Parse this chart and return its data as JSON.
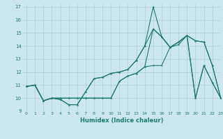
{
  "xlabel": "Humidex (Indice chaleur)",
  "background_color": "#cce8ee",
  "line_color": "#1a7a6e",
  "grid_color": "#aacfd6",
  "xlim": [
    -0.5,
    23
  ],
  "ylim": [
    9,
    17.2
  ],
  "xticks": [
    0,
    1,
    2,
    3,
    4,
    5,
    6,
    7,
    8,
    9,
    10,
    11,
    12,
    13,
    14,
    15,
    16,
    17,
    18,
    19,
    20,
    21,
    22,
    23
  ],
  "yticks": [
    9,
    10,
    11,
    12,
    13,
    14,
    15,
    16,
    17
  ],
  "series": [
    [
      10.9,
      11.0,
      9.8,
      10.0,
      9.9,
      9.5,
      9.5,
      10.5,
      11.5,
      11.6,
      11.9,
      12.0,
      12.2,
      12.9,
      14.0,
      17.0,
      14.7,
      13.9,
      14.3,
      14.8,
      10.0,
      12.5,
      11.2,
      10.0
    ],
    [
      10.9,
      11.0,
      9.8,
      10.0,
      10.0,
      10.0,
      10.0,
      10.0,
      10.0,
      10.0,
      10.0,
      11.3,
      11.7,
      11.9,
      12.4,
      12.5,
      12.5,
      13.9,
      14.1,
      14.8,
      14.4,
      14.3,
      12.5,
      10.0
    ],
    [
      10.9,
      11.0,
      9.8,
      10.0,
      10.0,
      10.0,
      10.0,
      10.0,
      10.0,
      10.0,
      10.0,
      11.3,
      11.7,
      11.9,
      12.4,
      15.3,
      14.7,
      13.9,
      14.3,
      14.8,
      14.4,
      14.3,
      12.5,
      10.0
    ],
    [
      10.9,
      11.0,
      9.8,
      10.0,
      9.9,
      9.5,
      9.5,
      10.5,
      11.5,
      11.6,
      11.9,
      12.0,
      12.2,
      12.9,
      14.0,
      15.3,
      14.7,
      13.9,
      14.3,
      14.8,
      10.0,
      12.5,
      11.2,
      10.0
    ]
  ]
}
